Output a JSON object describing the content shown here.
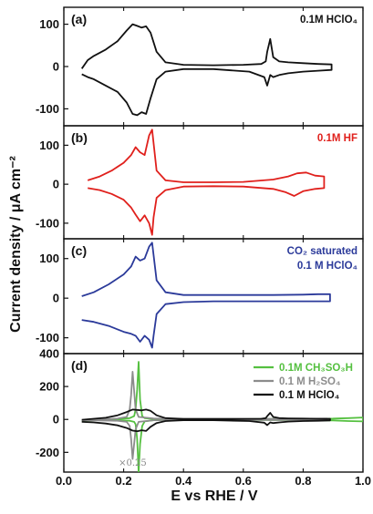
{
  "figure": {
    "y_axis_title": "Current density / μA cm⁻²",
    "x_axis_title": "E vs RHE / V"
  },
  "chart_data": [
    {
      "panel_label": "(a)",
      "type": "line",
      "condition": "0.1M HClO₄",
      "condition_color": "#111111",
      "xlim": [
        0.0,
        1.0
      ],
      "ylim": [
        -140,
        140
      ],
      "yticks": [
        100,
        0,
        -100
      ],
      "series": [
        {
          "color": "#111111",
          "x": [
            0.06,
            0.08,
            0.1,
            0.14,
            0.18,
            0.21,
            0.23,
            0.245,
            0.26,
            0.275,
            0.29,
            0.31,
            0.34,
            0.4,
            0.5,
            0.6,
            0.66,
            0.675,
            0.68,
            0.69,
            0.7,
            0.72,
            0.75,
            0.8,
            0.85,
            0.895,
            0.895,
            0.85,
            0.8,
            0.75,
            0.72,
            0.7,
            0.69,
            0.68,
            0.67,
            0.62,
            0.5,
            0.4,
            0.34,
            0.31,
            0.29,
            0.275,
            0.26,
            0.245,
            0.23,
            0.21,
            0.18,
            0.14,
            0.1,
            0.08,
            0.06
          ],
          "y": [
            -5,
            15,
            25,
            40,
            60,
            85,
            100,
            96,
            92,
            95,
            80,
            35,
            10,
            4,
            3,
            4,
            6,
            12,
            35,
            65,
            22,
            12,
            10,
            8,
            6,
            5,
            -8,
            -10,
            -12,
            -16,
            -20,
            -25,
            -20,
            -45,
            -25,
            -12,
            -6,
            -6,
            -12,
            -30,
            -75,
            -112,
            -108,
            -115,
            -112,
            -85,
            -60,
            -45,
            -30,
            -25,
            -18
          ]
        }
      ]
    },
    {
      "panel_label": "(b)",
      "type": "line",
      "condition": "0.1M HF",
      "condition_color": "#e0201c",
      "xlim": [
        0.0,
        1.0
      ],
      "ylim": [
        -140,
        150
      ],
      "yticks": [
        100,
        0,
        -100
      ],
      "series": [
        {
          "color": "#e0201c",
          "x": [
            0.08,
            0.12,
            0.16,
            0.2,
            0.225,
            0.24,
            0.255,
            0.27,
            0.285,
            0.295,
            0.31,
            0.34,
            0.4,
            0.5,
            0.6,
            0.7,
            0.75,
            0.78,
            0.81,
            0.84,
            0.87,
            0.87,
            0.84,
            0.8,
            0.77,
            0.74,
            0.7,
            0.6,
            0.5,
            0.4,
            0.34,
            0.31,
            0.3,
            0.295,
            0.285,
            0.27,
            0.255,
            0.24,
            0.225,
            0.2,
            0.16,
            0.12,
            0.08
          ],
          "y": [
            10,
            20,
            35,
            55,
            75,
            95,
            82,
            75,
            125,
            140,
            35,
            10,
            5,
            5,
            6,
            12,
            20,
            28,
            30,
            22,
            20,
            -10,
            -12,
            -18,
            -30,
            -20,
            -12,
            -6,
            -5,
            -6,
            -15,
            -35,
            -85,
            -130,
            -100,
            -80,
            -95,
            -78,
            -60,
            -40,
            -25,
            -15,
            -10
          ]
        }
      ]
    },
    {
      "panel_label": "(c)",
      "type": "line",
      "condition": [
        "CO₂ saturated",
        "0.1 M HClO₄"
      ],
      "condition_color": "#2b3a9a",
      "xlim": [
        0.0,
        1.0
      ],
      "ylim": [
        -140,
        150
      ],
      "yticks": [
        100,
        0,
        -100
      ],
      "series": [
        {
          "color": "#2b3a9a",
          "x": [
            0.06,
            0.1,
            0.15,
            0.2,
            0.225,
            0.24,
            0.255,
            0.27,
            0.285,
            0.295,
            0.31,
            0.34,
            0.4,
            0.5,
            0.6,
            0.7,
            0.8,
            0.85,
            0.89,
            0.89,
            0.85,
            0.8,
            0.7,
            0.6,
            0.5,
            0.4,
            0.34,
            0.31,
            0.3,
            0.295,
            0.285,
            0.27,
            0.255,
            0.24,
            0.225,
            0.2,
            0.15,
            0.1,
            0.06
          ],
          "y": [
            5,
            15,
            35,
            60,
            80,
            105,
            95,
            100,
            130,
            140,
            45,
            15,
            8,
            8,
            8,
            8,
            9,
            10,
            10,
            -8,
            -8,
            -8,
            -8,
            -8,
            -8,
            -10,
            -15,
            -40,
            -95,
            -125,
            -105,
            -95,
            -110,
            -95,
            -90,
            -85,
            -70,
            -60,
            -55
          ]
        }
      ]
    },
    {
      "panel_label": "(d)",
      "type": "line",
      "xlim": [
        0.0,
        1.0
      ],
      "ylim": [
        -320,
        400
      ],
      "yticks": [
        400,
        200,
        0,
        -200
      ],
      "annotation": "×0.25",
      "legend": "top-right",
      "series": [
        {
          "name": "0.1M CH₃SO₃H",
          "color": "#55c040",
          "x": [
            0.06,
            0.12,
            0.18,
            0.22,
            0.235,
            0.24,
            0.245,
            0.25,
            0.255,
            0.262,
            0.27,
            0.3,
            0.4,
            0.5,
            0.6,
            0.7,
            0.8,
            0.9,
            0.95,
            1.0,
            1.0,
            0.95,
            0.9,
            0.8,
            0.7,
            0.6,
            0.5,
            0.4,
            0.3,
            0.27,
            0.262,
            0.255,
            0.25,
            0.245,
            0.24,
            0.235,
            0.22,
            0.18,
            0.12,
            0.06
          ],
          "y": [
            -8,
            -2,
            2,
            8,
            20,
            60,
            180,
            350,
            120,
            20,
            8,
            3,
            2,
            2,
            2,
            3,
            4,
            5,
            8,
            12,
            -12,
            -10,
            -6,
            -5,
            -4,
            -3,
            -3,
            -3,
            -5,
            -12,
            -40,
            -150,
            -320,
            -120,
            -30,
            -15,
            -8,
            -5,
            -4,
            -8
          ]
        },
        {
          "name": "0.1 M H₂SO₄",
          "color": "#8c8c8c",
          "x": [
            0.06,
            0.12,
            0.18,
            0.21,
            0.22,
            0.225,
            0.23,
            0.24,
            0.25,
            0.3,
            0.4,
            0.6,
            0.8,
            0.88,
            0.88,
            0.8,
            0.6,
            0.4,
            0.3,
            0.25,
            0.24,
            0.23,
            0.225,
            0.22,
            0.21,
            0.18,
            0.12,
            0.06
          ],
          "y": [
            -5,
            0,
            5,
            15,
            60,
            150,
            290,
            60,
            15,
            6,
            3,
            3,
            4,
            5,
            -5,
            -4,
            -3,
            -3,
            -5,
            -15,
            -60,
            -240,
            -120,
            -40,
            -15,
            -8,
            -6,
            -6
          ]
        },
        {
          "name": "0.1 M HClO₄",
          "color": "#111111",
          "x": [
            0.06,
            0.1,
            0.14,
            0.18,
            0.21,
            0.23,
            0.245,
            0.26,
            0.275,
            0.29,
            0.31,
            0.34,
            0.4,
            0.5,
            0.6,
            0.66,
            0.675,
            0.68,
            0.69,
            0.7,
            0.72,
            0.75,
            0.8,
            0.85,
            0.89,
            0.89,
            0.85,
            0.8,
            0.75,
            0.72,
            0.7,
            0.69,
            0.68,
            0.67,
            0.62,
            0.5,
            0.4,
            0.34,
            0.31,
            0.29,
            0.275,
            0.26,
            0.245,
            0.23,
            0.21,
            0.18,
            0.14,
            0.1,
            0.06
          ],
          "y": [
            -2,
            4,
            10,
            25,
            45,
            60,
            58,
            55,
            60,
            52,
            25,
            8,
            3,
            3,
            3,
            4,
            8,
            20,
            40,
            15,
            8,
            6,
            5,
            4,
            4,
            -6,
            -8,
            -10,
            -13,
            -18,
            -22,
            -18,
            -35,
            -20,
            -10,
            -5,
            -5,
            -10,
            -22,
            -45,
            -70,
            -66,
            -72,
            -68,
            -52,
            -36,
            -25,
            -18,
            -15
          ]
        }
      ]
    }
  ]
}
